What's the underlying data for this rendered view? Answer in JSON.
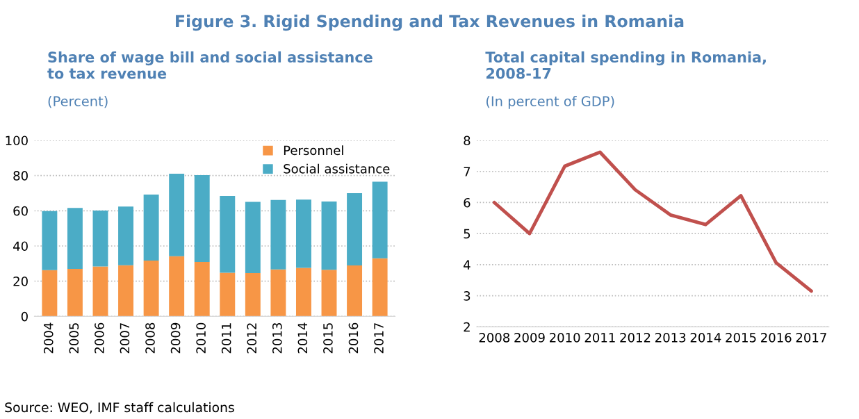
{
  "chart_data": [
    {
      "type": "bar",
      "title": "Share of wage bill and social assistance\nto tax revenue",
      "subtitle": "(Percent)",
      "annotations": [
        "Figure 3. Rigid Spending and Tax Revenues in Romania",
        "Source: WEO, IMF staff calculations"
      ],
      "categories": [
        "2004",
        "2005",
        "2006",
        "2007",
        "2008",
        "2009",
        "2010",
        "2011",
        "2012",
        "2013",
        "2014",
        "2015",
        "2016",
        "2017"
      ],
      "stacked": true,
      "series": [
        {
          "name": "Personnel",
          "color": "#f79646",
          "values": [
            26.3,
            27,
            28.3,
            29,
            31.7,
            34.2,
            30.9,
            24.8,
            24.6,
            26.7,
            27.5,
            26.5,
            28.9,
            33
          ]
        },
        {
          "name": "Social assistance",
          "color": "#4bacc6",
          "values": [
            33.5,
            34.6,
            31.8,
            33.4,
            37.5,
            46.8,
            49.4,
            43.6,
            40.5,
            39.4,
            38.8,
            38.8,
            41.1,
            43.5
          ]
        }
      ],
      "ylim": [
        0,
        100
      ],
      "yticks": [
        0,
        20,
        40,
        60,
        80,
        100
      ],
      "grid": "y",
      "legend": "top right"
    },
    {
      "type": "line",
      "title": "Total capital spending in Romania,\n2008-17",
      "subtitle": "(In percent of GDP)",
      "categories": [
        "2008",
        "2009",
        "2010",
        "2011",
        "2012",
        "2013",
        "2014",
        "2015",
        "2016",
        "2017"
      ],
      "series": [
        {
          "color": "#c0504d",
          "values": [
            6.0,
            5.0,
            7.17,
            7.62,
            6.41,
            5.6,
            5.29,
            6.22,
            4.06,
            3.15
          ]
        }
      ],
      "ylim": [
        2,
        8
      ],
      "yticks": [
        2,
        3,
        4,
        5,
        6,
        7,
        8
      ],
      "grid": "y",
      "line_style": "solid",
      "marker": "none"
    }
  ]
}
